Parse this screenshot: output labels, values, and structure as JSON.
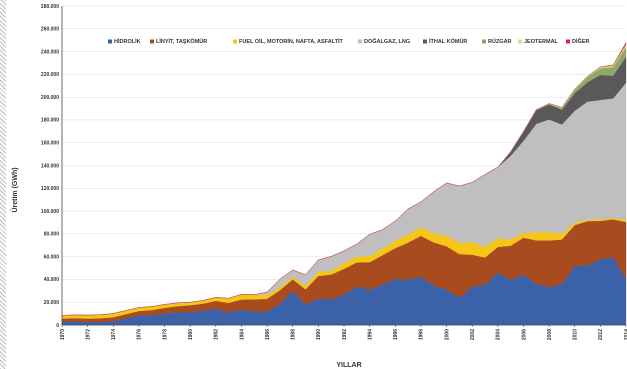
{
  "chart_data": {
    "type": "area",
    "stacked": true,
    "title": "",
    "xlabel": "YILLAR",
    "ylabel": "Üretim (GWh)",
    "ylim": [
      0,
      280000
    ],
    "y_ticks": [
      0,
      20000,
      40000,
      60000,
      80000,
      100000,
      120000,
      140000,
      160000,
      180000,
      200000,
      220000,
      240000,
      260000,
      280000
    ],
    "y_tick_labels": [
      "0",
      "20.000",
      "40.000",
      "60.000",
      "80.000",
      "100.000",
      "120.000",
      "140.000",
      "160.000",
      "180.000",
      "200.000",
      "220.000",
      "240.000",
      "260.000",
      "280.000"
    ],
    "x_tick_labels": [
      "1970",
      "1972",
      "1974",
      "1976",
      "1978",
      "1980",
      "1982",
      "1984",
      "1986",
      "1988",
      "1990",
      "1992",
      "1994",
      "1996",
      "1998",
      "2000",
      "2002",
      "2004",
      "2006",
      "2008",
      "2010",
      "2012",
      "2014"
    ],
    "x": [
      1970,
      1971,
      1972,
      1973,
      1974,
      1975,
      1976,
      1977,
      1978,
      1979,
      1980,
      1981,
      1982,
      1983,
      1984,
      1985,
      1986,
      1987,
      1988,
      1989,
      1990,
      1991,
      1992,
      1993,
      1994,
      1995,
      1996,
      1997,
      1998,
      1999,
      2000,
      2001,
      2002,
      2003,
      2004,
      2005,
      2006,
      2007,
      2008,
      2009,
      2010,
      2011,
      2012,
      2013,
      2014
    ],
    "legend_position": "top",
    "grid": true,
    "series": [
      {
        "name": "HİDROLİK",
        "color": "#3b62a8",
        "values": [
          3000,
          3200,
          2600,
          2600,
          3400,
          5900,
          8400,
          8600,
          10000,
          11000,
          11300,
          12600,
          14200,
          11300,
          13400,
          12000,
          11900,
          18600,
          29900,
          18000,
          23100,
          22700,
          26600,
          34000,
          30600,
          35500,
          40500,
          39800,
          42200,
          34700,
          30900,
          24000,
          33700,
          35300,
          46100,
          39600,
          44200,
          36000,
          33300,
          36000,
          51800,
          52300,
          57900,
          59400,
          40600
        ]
      },
      {
        "name": "LİNYİT, TAŞKÖMÜR",
        "color": "#a84b1f",
        "values": [
          2600,
          2800,
          3000,
          3300,
          3400,
          3600,
          3900,
          4500,
          5000,
          5500,
          6000,
          6200,
          7000,
          8000,
          9000,
          10500,
          11000,
          11900,
          10100,
          13300,
          19900,
          21500,
          22700,
          21000,
          24500,
          25700,
          27000,
          32600,
          36000,
          37800,
          38200,
          38200,
          28000,
          24000,
          22400,
          30000,
          32400,
          38300,
          40900,
          39100,
          35900,
          38900,
          33500,
          33300,
          49800
        ]
      },
      {
        "name": "FUEL OİL, MOTORİN, NAFTA, ASFALTİT",
        "color": "#f5c518",
        "values": [
          2800,
          2900,
          3000,
          3100,
          3300,
          3200,
          3000,
          3100,
          3000,
          2900,
          2600,
          2700,
          3000,
          4100,
          4500,
          4000,
          3200,
          2700,
          2200,
          3100,
          3900,
          3300,
          5000,
          5200,
          5400,
          5800,
          6500,
          7100,
          7500,
          8100,
          9300,
          10100,
          10900,
          9200,
          7700,
          5500,
          4300,
          7200,
          7500,
          4800,
          2200,
          900,
          1600,
          1100,
          1700
        ]
      },
      {
        "name": "DOĞALGAZ, LNG",
        "color": "#bfbfbf",
        "values": [
          0,
          0,
          0,
          0,
          0,
          0,
          0,
          0,
          0,
          0,
          0,
          0,
          0,
          0,
          0,
          100,
          2700,
          7000,
          6000,
          9600,
          10200,
          12600,
          10800,
          10800,
          19000,
          16600,
          17200,
          22300,
          22300,
          36300,
          46200,
          49500,
          52500,
          63500,
          62200,
          73400,
          80700,
          95000,
          98700,
          96100,
          98100,
          104000,
          104500,
          105100,
          120500
        ]
      },
      {
        "name": "İTHAL KÖMÜR",
        "color": "#595959",
        "values": [
          0,
          0,
          0,
          0,
          0,
          0,
          0,
          0,
          0,
          0,
          0,
          0,
          0,
          0,
          0,
          0,
          0,
          0,
          0,
          0,
          0,
          0,
          0,
          0,
          0,
          0,
          0,
          0,
          0,
          0,
          0,
          0,
          0,
          0,
          0,
          3500,
          8000,
          12000,
          13000,
          13000,
          15500,
          17000,
          22000,
          20000,
          23000
        ]
      },
      {
        "name": "RÜZGAR",
        "color": "#8fa86a",
        "values": [
          0,
          0,
          0,
          0,
          0,
          0,
          0,
          0,
          0,
          0,
          0,
          0,
          0,
          0,
          0,
          0,
          0,
          0,
          0,
          0,
          0,
          0,
          0,
          0,
          0,
          0,
          0,
          0,
          50,
          60,
          60,
          60,
          50,
          60,
          60,
          60,
          120,
          360,
          850,
          1500,
          2900,
          4700,
          5900,
          7600,
          8500
        ]
      },
      {
        "name": "JEOTERMAL",
        "color": "#d7e07a",
        "values": [
          0,
          0,
          0,
          0,
          0,
          20,
          30,
          30,
          40,
          40,
          40,
          50,
          60,
          60,
          60,
          60,
          60,
          60,
          60,
          60,
          80,
          80,
          70,
          80,
          80,
          90,
          90,
          80,
          90,
          80,
          80,
          90,
          110,
          90,
          90,
          100,
          100,
          160,
          160,
          440,
          670,
          690,
          900,
          1360,
          2360
        ]
      },
      {
        "name": "DİĞER",
        "color": "#d8244f",
        "values": [
          0,
          0,
          0,
          0,
          0,
          0,
          0,
          0,
          0,
          0,
          0,
          0,
          0,
          0,
          0,
          0,
          0,
          0,
          0,
          0,
          0,
          0,
          0,
          0,
          0,
          0,
          0,
          0,
          0,
          0,
          0,
          0,
          0,
          0,
          0,
          0,
          0,
          0,
          0,
          0,
          0,
          0,
          300,
          500,
          1500
        ]
      }
    ]
  }
}
